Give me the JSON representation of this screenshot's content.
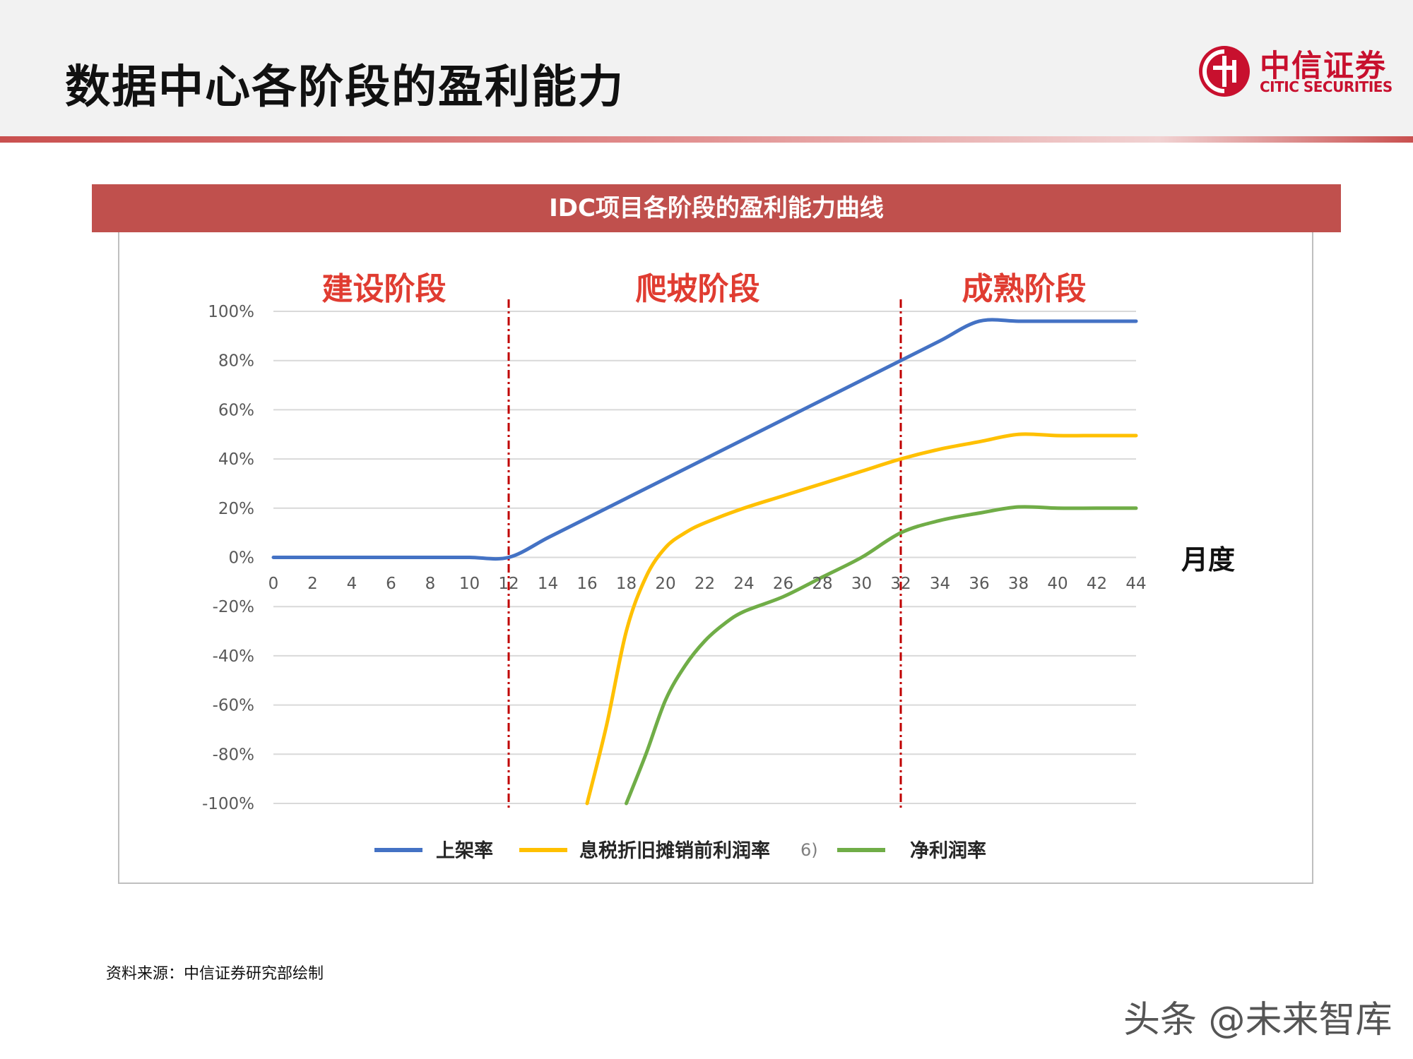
{
  "page": {
    "title": "数据中心各阶段的盈利能力",
    "source": "资料来源：中信证券研究部绘制",
    "watermark": "头条 @未来智库"
  },
  "logo": {
    "cn": "中信证券",
    "en": "CITIC SECURITIES",
    "color": "#c8102e"
  },
  "colors": {
    "banner": "#c0504d",
    "stage_label": "#e03c31",
    "divider": "#c00000"
  },
  "chart_data": {
    "type": "line",
    "title": "IDC项目各阶段的盈利能力曲线",
    "xlabel": "月度",
    "ylabel": "",
    "xlim": [
      0,
      44
    ],
    "ylim": [
      -100,
      100
    ],
    "x_ticks": [
      0,
      2,
      4,
      6,
      8,
      10,
      12,
      14,
      16,
      18,
      20,
      22,
      24,
      26,
      28,
      30,
      32,
      34,
      36,
      38,
      40,
      42,
      44
    ],
    "y_ticks": [
      100,
      80,
      60,
      40,
      20,
      0,
      -20,
      -40,
      -60,
      -80,
      -100
    ],
    "y_tick_labels": [
      "100%",
      "80%",
      "60%",
      "40%",
      "20%",
      "0%",
      "-20%",
      "-40%",
      "-60%",
      "-80%",
      "-100%"
    ],
    "grid": true,
    "legend_position": "bottom",
    "stages": [
      {
        "label": "建设阶段",
        "x_start": 0,
        "x_end": 12
      },
      {
        "label": "爬坡阶段",
        "x_start": 12,
        "x_end": 32
      },
      {
        "label": "成熟阶段",
        "x_start": 32,
        "x_end": 44
      }
    ],
    "dividers": [
      12,
      32
    ],
    "series": [
      {
        "name": "上架率",
        "color": "#4472c4",
        "points": [
          [
            0,
            0
          ],
          [
            2,
            0
          ],
          [
            4,
            0
          ],
          [
            6,
            0
          ],
          [
            8,
            0
          ],
          [
            10,
            0
          ],
          [
            12,
            0
          ],
          [
            14,
            8
          ],
          [
            16,
            16
          ],
          [
            18,
            24
          ],
          [
            20,
            32
          ],
          [
            22,
            40
          ],
          [
            24,
            48
          ],
          [
            26,
            56
          ],
          [
            28,
            64
          ],
          [
            30,
            72
          ],
          [
            32,
            80
          ],
          [
            34,
            88
          ],
          [
            36,
            96
          ],
          [
            38,
            96
          ],
          [
            40,
            96
          ],
          [
            42,
            96
          ],
          [
            44,
            96
          ]
        ]
      },
      {
        "name": "息税折旧摊销前利润率",
        "color": "#ffc000",
        "points": [
          [
            16,
            -100
          ],
          [
            17,
            -68
          ],
          [
            18,
            -30
          ],
          [
            19,
            -8
          ],
          [
            20,
            4
          ],
          [
            21,
            10
          ],
          [
            22,
            14
          ],
          [
            24,
            20
          ],
          [
            26,
            25
          ],
          [
            28,
            30
          ],
          [
            30,
            35
          ],
          [
            32,
            40
          ],
          [
            34,
            44
          ],
          [
            36,
            47
          ],
          [
            38,
            50
          ],
          [
            40,
            49.5
          ],
          [
            42,
            49.5
          ],
          [
            44,
            49.5
          ]
        ]
      },
      {
        "name": "净利润率",
        "color": "#70ad47",
        "points": [
          [
            18,
            -100
          ],
          [
            19,
            -80
          ],
          [
            20,
            -58
          ],
          [
            21,
            -44
          ],
          [
            22,
            -34
          ],
          [
            23,
            -27
          ],
          [
            24,
            -22
          ],
          [
            26,
            -16
          ],
          [
            28,
            -8
          ],
          [
            30,
            0
          ],
          [
            32,
            10
          ],
          [
            34,
            15
          ],
          [
            36,
            18
          ],
          [
            38,
            20.5
          ],
          [
            40,
            20
          ],
          [
            42,
            20
          ],
          [
            44,
            20
          ]
        ]
      }
    ],
    "annotations": [
      "6)"
    ]
  }
}
